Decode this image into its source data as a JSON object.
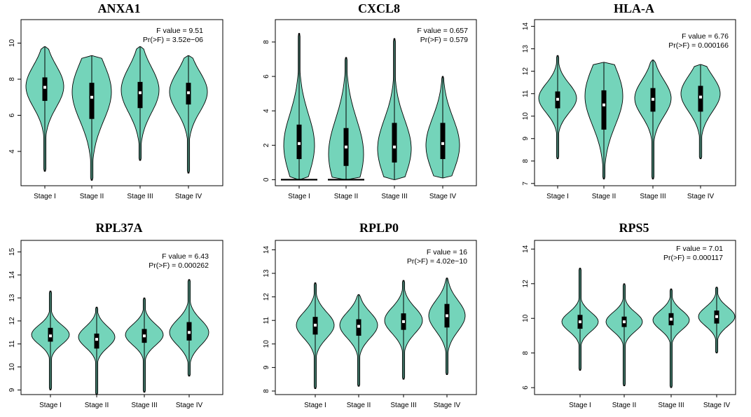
{
  "chart_data": [
    {
      "type": "violin",
      "title": "ANXA1",
      "categories": [
        "Stage I",
        "Stage II",
        "Stage III",
        "Stage IV"
      ],
      "ylim": [
        2.1,
        11.3
      ],
      "yticks": [
        4,
        6,
        8,
        10
      ],
      "stats": [
        "F value = 9.51",
        "Pr(>F) = 3.52e−06"
      ],
      "violins": [
        {
          "min": 2.9,
          "max": 9.8,
          "q1": 6.8,
          "median": 7.55,
          "q3": 8.1,
          "mode": 7.6,
          "spread": 1.15,
          "maxw": 27
        },
        {
          "min": 2.4,
          "max": 9.3,
          "q1": 5.8,
          "median": 7.0,
          "q3": 7.8,
          "mode": 7.3,
          "spread": 1.6,
          "maxw": 28
        },
        {
          "min": 3.5,
          "max": 9.8,
          "q1": 6.4,
          "median": 7.25,
          "q3": 7.85,
          "mode": 7.4,
          "spread": 1.25,
          "maxw": 27
        },
        {
          "min": 2.8,
          "max": 9.3,
          "q1": 6.6,
          "median": 7.25,
          "q3": 7.8,
          "mode": 7.3,
          "spread": 1.1,
          "maxw": 27
        }
      ]
    },
    {
      "type": "violin",
      "title": "CXCL8",
      "categories": [
        "Stage I",
        "Stage II",
        "Stage III",
        "Stage IV"
      ],
      "ylim": [
        -0.35,
        9.3
      ],
      "yticks": [
        0,
        2,
        4,
        6,
        8
      ],
      "stats": [
        "F value = 0.657",
        "Pr(>F) = 0.579"
      ],
      "violins": [
        {
          "min": 0.0,
          "max": 8.5,
          "q1": 1.2,
          "median": 2.1,
          "q3": 3.2,
          "mode": 2.0,
          "spread": 1.8,
          "maxw": 22,
          "zero_line": true
        },
        {
          "min": 0.0,
          "max": 7.1,
          "q1": 0.8,
          "median": 1.9,
          "q3": 3.0,
          "mode": 1.5,
          "spread": 2.0,
          "maxw": 25,
          "zero_line": true
        },
        {
          "min": 0.0,
          "max": 8.2,
          "q1": 1.0,
          "median": 1.9,
          "q3": 3.3,
          "mode": 1.8,
          "spread": 1.7,
          "maxw": 24
        },
        {
          "min": 0.1,
          "max": 6.0,
          "q1": 1.2,
          "median": 2.1,
          "q3": 3.3,
          "mode": 2.0,
          "spread": 1.6,
          "maxw": 24
        }
      ]
    },
    {
      "type": "violin",
      "title": "HLA-A",
      "categories": [
        "Stage I",
        "Stage II",
        "Stage III",
        "Stage IV"
      ],
      "ylim": [
        6.9,
        14.3
      ],
      "yticks": [
        7,
        8,
        9,
        10,
        11,
        12,
        13,
        14
      ],
      "stats": [
        "F value = 6.76",
        "Pr(>F) = 0.000166"
      ],
      "violins": [
        {
          "min": 8.1,
          "max": 12.7,
          "q1": 10.35,
          "median": 10.75,
          "q3": 11.1,
          "mode": 10.8,
          "spread": 0.65,
          "maxw": 27
        },
        {
          "min": 7.2,
          "max": 12.4,
          "q1": 9.4,
          "median": 10.5,
          "q3": 11.15,
          "mode": 10.9,
          "spread": 1.3,
          "maxw": 27
        },
        {
          "min": 7.2,
          "max": 12.5,
          "q1": 10.2,
          "median": 10.75,
          "q3": 11.25,
          "mode": 10.8,
          "spread": 0.8,
          "maxw": 26
        },
        {
          "min": 8.1,
          "max": 12.3,
          "q1": 10.2,
          "median": 10.85,
          "q3": 11.35,
          "mode": 11.0,
          "spread": 0.8,
          "maxw": 28
        }
      ]
    },
    {
      "type": "violin",
      "title": "RPL37A",
      "categories": [
        "Stage I",
        "Stage II",
        "Stage III",
        "Stage IV"
      ],
      "ylim": [
        8.8,
        15.5
      ],
      "yticks": [
        9,
        10,
        11,
        12,
        13,
        14,
        15
      ],
      "stats": [
        "F value = 6.43",
        "Pr(>F) = 0.000262"
      ],
      "violins": [
        {
          "min": 9.0,
          "max": 13.3,
          "q1": 11.1,
          "median": 11.35,
          "q3": 11.7,
          "mode": 11.4,
          "spread": 0.42,
          "maxw": 27
        },
        {
          "min": 8.8,
          "max": 12.6,
          "q1": 10.8,
          "median": 11.2,
          "q3": 11.45,
          "mode": 11.3,
          "spread": 0.45,
          "maxw": 26
        },
        {
          "min": 8.9,
          "max": 13.0,
          "q1": 11.05,
          "median": 11.35,
          "q3": 11.65,
          "mode": 11.4,
          "spread": 0.45,
          "maxw": 27
        },
        {
          "min": 9.6,
          "max": 13.8,
          "q1": 11.15,
          "median": 11.5,
          "q3": 11.95,
          "mode": 11.5,
          "spread": 0.55,
          "maxw": 28
        }
      ]
    },
    {
      "type": "violin",
      "title": "RPLP0",
      "categories": [
        "Stage I",
        "Stage II",
        "Stage III",
        "Stage IV"
      ],
      "ylim": [
        7.85,
        14.4
      ],
      "yticks": [
        8,
        9,
        10,
        11,
        12,
        13,
        14
      ],
      "stats": [
        "F value = 16",
        "Pr(>F) = 4.02e−10"
      ],
      "violins": [
        {
          "min": 8.1,
          "max": 12.6,
          "q1": 10.4,
          "median": 10.8,
          "q3": 11.15,
          "mode": 10.8,
          "spread": 0.55,
          "maxw": 27
        },
        {
          "min": 8.2,
          "max": 12.1,
          "q1": 10.35,
          "median": 10.75,
          "q3": 11.05,
          "mode": 10.8,
          "spread": 0.55,
          "maxw": 27
        },
        {
          "min": 8.5,
          "max": 12.7,
          "q1": 10.6,
          "median": 10.95,
          "q3": 11.3,
          "mode": 11.0,
          "spread": 0.55,
          "maxw": 27
        },
        {
          "min": 8.7,
          "max": 12.8,
          "q1": 10.7,
          "median": 11.2,
          "q3": 11.7,
          "mode": 11.2,
          "spread": 0.65,
          "maxw": 26
        }
      ]
    },
    {
      "type": "violin",
      "title": "RPS5",
      "categories": [
        "Stage I",
        "Stage II",
        "Stage III",
        "Stage IV"
      ],
      "ylim": [
        5.6,
        14.5
      ],
      "yticks": [
        6,
        8,
        10,
        12,
        14
      ],
      "stats": [
        "F value = 7.01",
        "Pr(>F) = 0.000117"
      ],
      "violins": [
        {
          "min": 7.0,
          "max": 12.9,
          "q1": 9.4,
          "median": 9.8,
          "q3": 10.2,
          "mode": 9.8,
          "spread": 0.55,
          "maxw": 26
        },
        {
          "min": 6.1,
          "max": 12.0,
          "q1": 9.5,
          "median": 9.8,
          "q3": 10.1,
          "mode": 9.8,
          "spread": 0.55,
          "maxw": 26
        },
        {
          "min": 6.0,
          "max": 11.7,
          "q1": 9.6,
          "median": 9.95,
          "q3": 10.3,
          "mode": 9.9,
          "spread": 0.55,
          "maxw": 26
        },
        {
          "min": 8.0,
          "max": 11.8,
          "q1": 9.7,
          "median": 10.1,
          "q3": 10.45,
          "mode": 10.1,
          "spread": 0.55,
          "maxw": 26
        }
      ]
    }
  ],
  "style": {
    "violin_fill": "#74D4BA",
    "outline": "#000000",
    "box": "#000000",
    "median": "#ffffff",
    "frame": "#000000"
  }
}
